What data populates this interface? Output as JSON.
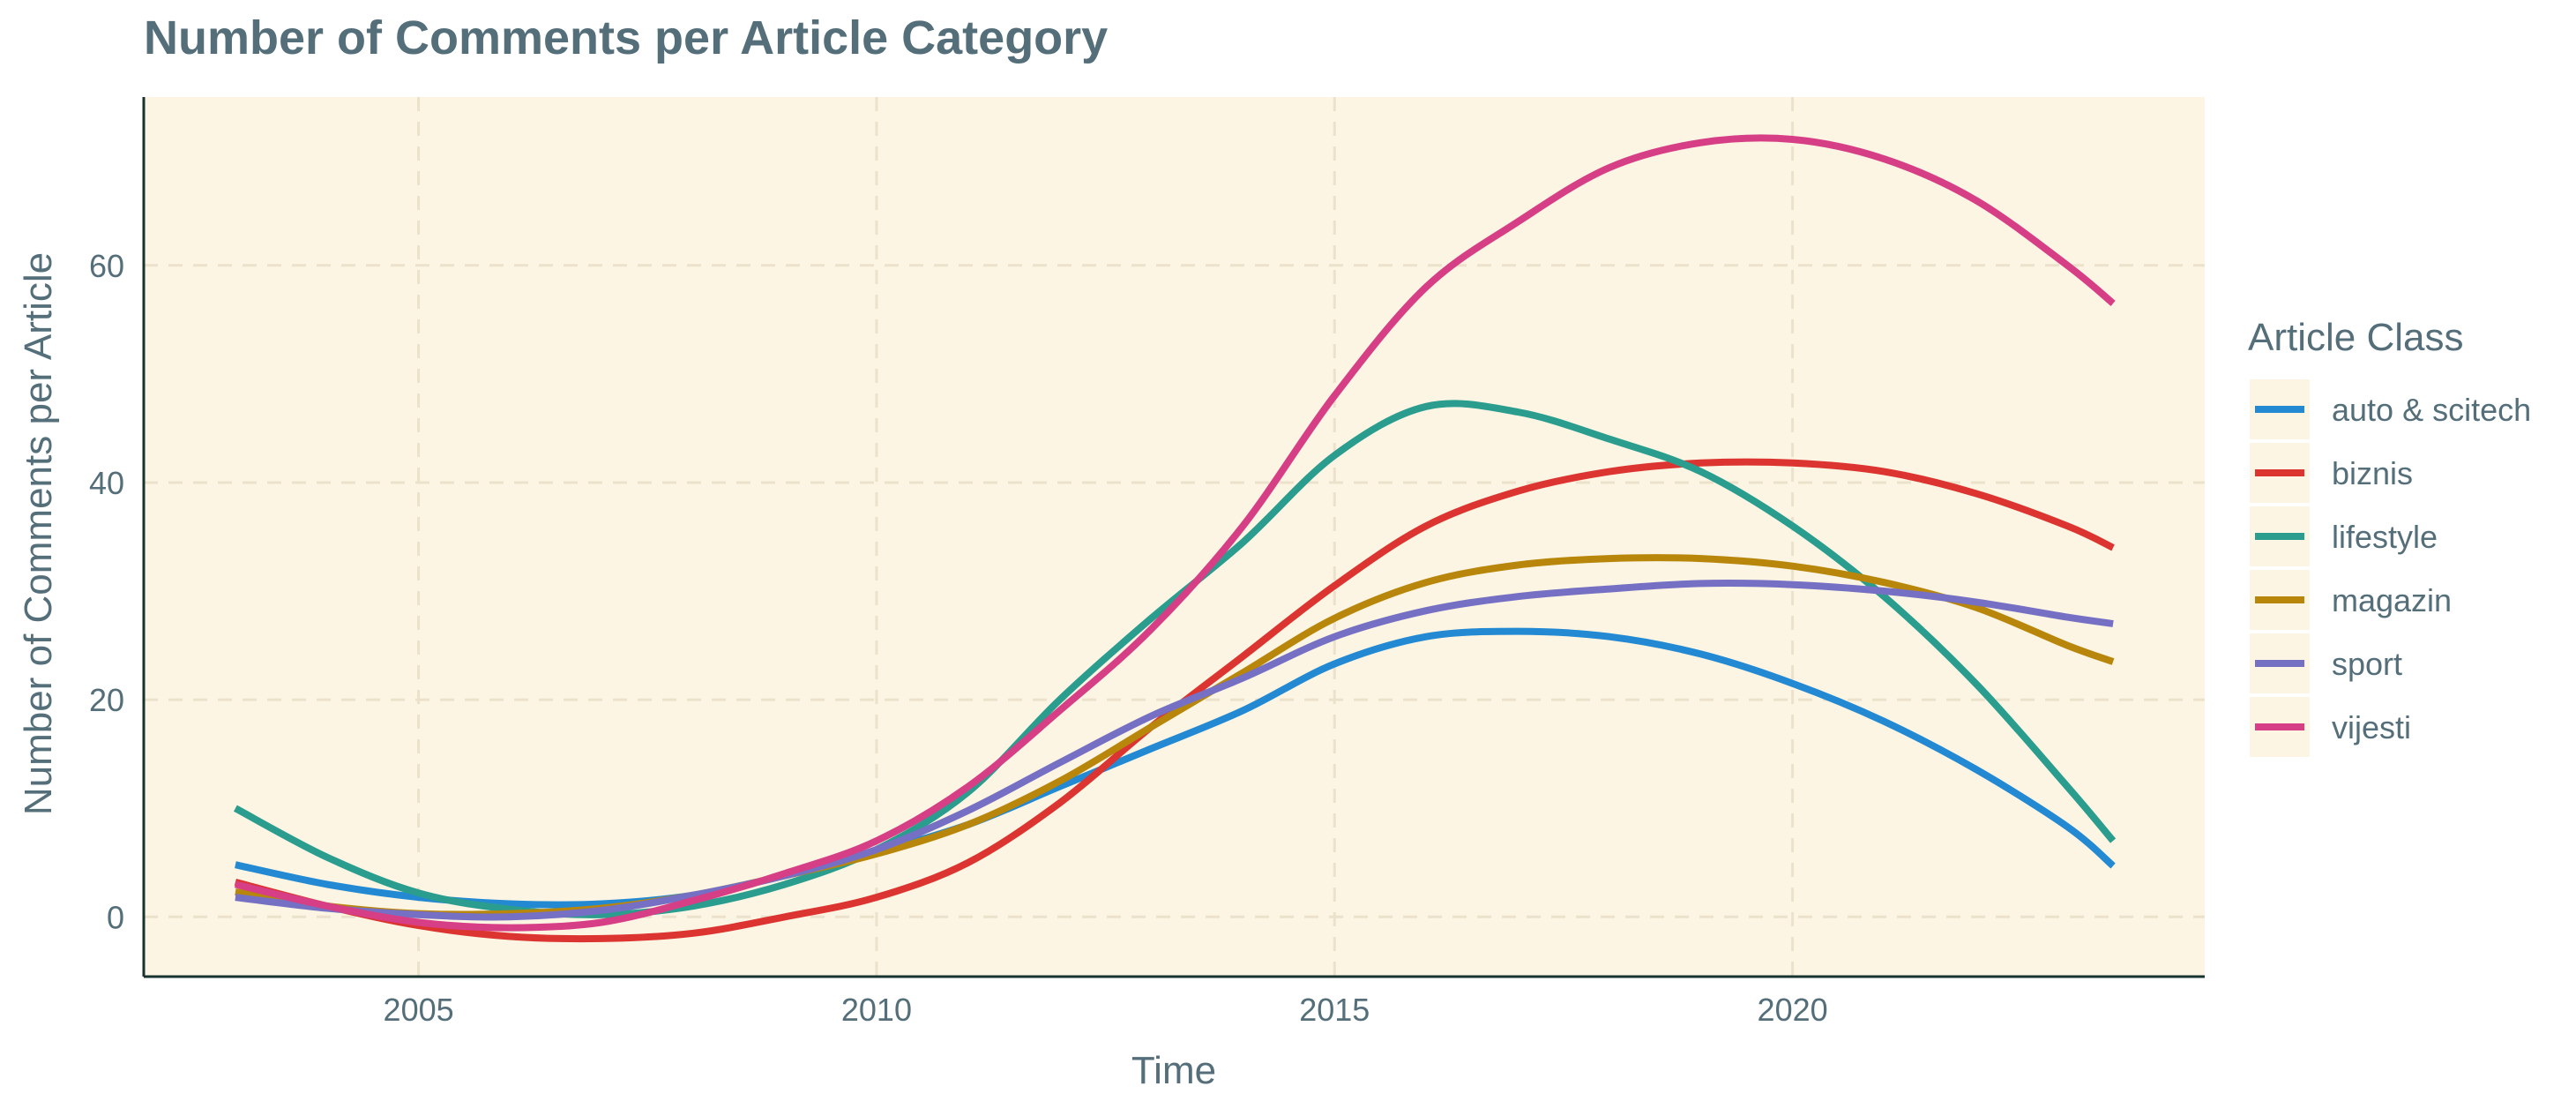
{
  "chart_data": {
    "type": "line",
    "title": "Number of Comments per Article Category",
    "xlabel": "Time",
    "ylabel": "Number of Comments per Article",
    "xlim": [
      2002,
      2024.5
    ],
    "ylim": [
      -5.5,
      75.5
    ],
    "x_ticks": [
      2005,
      2010,
      2015,
      2020
    ],
    "y_ticks": [
      0,
      20,
      40,
      60
    ],
    "grid": true,
    "legend_placement": "right",
    "legend_title": "Article Class",
    "colors": {
      "panel_background": "#fcf5e3",
      "grid": "#ece2cb",
      "axis_line": "#17322f",
      "text": "#546e7a"
    },
    "series": [
      {
        "name": "auto & scitech",
        "color": "#2389d2",
        "x": [
          2003,
          2004,
          2005,
          2006,
          2007,
          2008,
          2009,
          2010,
          2011,
          2012,
          2013,
          2014,
          2015,
          2016,
          2017,
          2018,
          2019,
          2020,
          2021,
          2022,
          2023,
          2023.5
        ],
        "y": [
          4.8,
          3,
          1.8,
          1.2,
          1.2,
          2,
          3.8,
          6,
          8.5,
          12,
          15.5,
          19,
          23.3,
          25.8,
          26.3,
          25.8,
          24.2,
          21.5,
          18,
          13.6,
          8.3,
          4.7
        ]
      },
      {
        "name": "biznis",
        "color": "#dc3430",
        "x": [
          2003,
          2004,
          2005,
          2006,
          2007,
          2008,
          2009,
          2010,
          2011,
          2012,
          2013,
          2014,
          2015,
          2016,
          2017,
          2018,
          2019,
          2020,
          2021,
          2022,
          2023,
          2023.5
        ],
        "y": [
          3.2,
          1,
          -0.8,
          -1.8,
          -2,
          -1.5,
          0,
          1.8,
          5,
          10.5,
          17.5,
          24,
          30.5,
          36,
          39.2,
          41,
          41.8,
          41.8,
          41,
          39,
          36,
          34
        ]
      },
      {
        "name": "lifestyle",
        "color": "#2a9d8f",
        "x": [
          2003,
          2004,
          2005,
          2006,
          2007,
          2008,
          2009,
          2010,
          2011,
          2012,
          2013,
          2014,
          2015,
          2016,
          2017,
          2018,
          2019,
          2020,
          2021,
          2022,
          2023,
          2023.5
        ],
        "y": [
          10,
          5.5,
          2.2,
          0.7,
          0.2,
          1,
          3,
          6.2,
          11.5,
          20,
          27.5,
          34.5,
          42.5,
          47,
          46.5,
          44,
          41,
          36,
          29.5,
          21.5,
          12,
          7
        ]
      },
      {
        "name": "magazin",
        "color": "#b8860b",
        "x": [
          2003,
          2004,
          2005,
          2006,
          2007,
          2008,
          2009,
          2010,
          2011,
          2012,
          2013,
          2014,
          2015,
          2016,
          2017,
          2018,
          2019,
          2020,
          2021,
          2022,
          2023,
          2023.5
        ],
        "y": [
          2.3,
          1,
          0.3,
          0.3,
          0.8,
          2,
          3.8,
          5.8,
          8.5,
          12.5,
          17.5,
          22.5,
          27.5,
          30.8,
          32.4,
          33,
          33,
          32.3,
          30.8,
          28.5,
          25,
          23.5
        ]
      },
      {
        "name": "sport",
        "color": "#7570c4",
        "x": [
          2003,
          2004,
          2005,
          2006,
          2007,
          2008,
          2009,
          2010,
          2011,
          2012,
          2013,
          2014,
          2015,
          2016,
          2017,
          2018,
          2019,
          2020,
          2021,
          2022,
          2023,
          2023.5
        ],
        "y": [
          1.8,
          0.8,
          0.2,
          0,
          0.6,
          2,
          3.8,
          6.2,
          9.8,
          14.2,
          18.5,
          22,
          25.8,
          28.2,
          29.5,
          30.2,
          30.7,
          30.6,
          30,
          29,
          27.6,
          27
        ]
      },
      {
        "name": "vijesti",
        "color": "#d63e86",
        "x": [
          2003,
          2004,
          2005,
          2006,
          2007,
          2008,
          2009,
          2010,
          2011,
          2012,
          2013,
          2014,
          2015,
          2016,
          2017,
          2018,
          2019,
          2020,
          2021,
          2022,
          2023,
          2023.5
        ],
        "y": [
          3,
          1,
          -0.5,
          -1,
          -0.5,
          1.5,
          4,
          7,
          12,
          19,
          26.5,
          36,
          48,
          58,
          64,
          69,
          71.3,
          71.6,
          69.8,
          66,
          60,
          56.5
        ]
      }
    ]
  }
}
